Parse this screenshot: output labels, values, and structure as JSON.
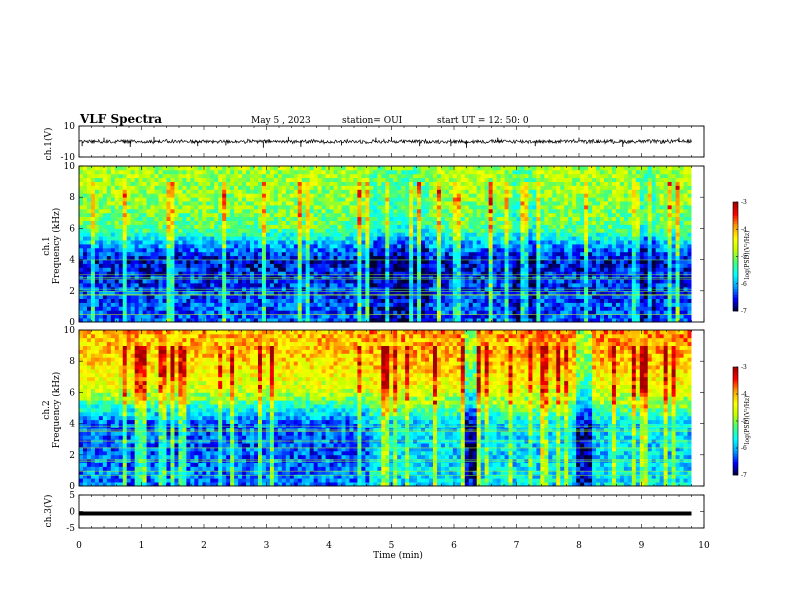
{
  "header": {
    "title": "VLF Spectra",
    "date": "May 5 , 2023",
    "station": "station= OUI",
    "start": "start UT = 12: 50: 0"
  },
  "colors": {
    "scale": [
      "#000033",
      "#0000ff",
      "#00a0ff",
      "#00ffff",
      "#40ff80",
      "#c0ff00",
      "#ffff00",
      "#ffa000",
      "#ff0000",
      "#a00000"
    ],
    "trace": "#000000"
  },
  "chart_data": [
    {
      "type": "line",
      "ylabel": "ch.1(V)",
      "ylim": [
        -10,
        10
      ],
      "ytick_labels": [
        "10",
        "-10"
      ],
      "baseline": 0,
      "noise_amplitude": 1.5,
      "spikes": [
        {
          "t": 0.05,
          "v": -3
        },
        {
          "t": 0.4,
          "v": 2.5
        },
        {
          "t": 0.82,
          "v": -3.5
        },
        {
          "t": 1.2,
          "v": 3
        },
        {
          "t": 1.9,
          "v": -3
        },
        {
          "t": 2.35,
          "v": -2.5
        },
        {
          "t": 2.95,
          "v": -4
        },
        {
          "t": 3.35,
          "v": 3
        },
        {
          "t": 3.55,
          "v": -3.5
        },
        {
          "t": 4.2,
          "v": -2.5
        },
        {
          "t": 4.75,
          "v": 2.5
        },
        {
          "t": 5.0,
          "v": 3
        },
        {
          "t": 5.45,
          "v": -3
        },
        {
          "t": 5.95,
          "v": -3
        },
        {
          "t": 6.2,
          "v": -4
        },
        {
          "t": 6.7,
          "v": 2.5
        },
        {
          "t": 7.3,
          "v": -3
        },
        {
          "t": 8.0,
          "v": 2.5
        },
        {
          "t": 8.7,
          "v": -3.5
        },
        {
          "t": 9.6,
          "v": 2.5
        }
      ]
    },
    {
      "type": "heatmap",
      "ylabel": "ch.1",
      "ylabel2": "Frequency (kHz)",
      "ylim": [
        0,
        10
      ],
      "ytick_labels": [
        "0",
        "2",
        "4",
        "6",
        "8",
        "10"
      ],
      "colorbar": {
        "label": "log(PSD)(V²/Hz)",
        "ticks": [
          "-3",
          "-4",
          "-5",
          "-6",
          "-7"
        ],
        "range": [
          -7,
          -3
        ]
      },
      "x_range_min": [
        0,
        9.8
      ],
      "psd_profile": [
        {
          "f": 0,
          "v": -6.3
        },
        {
          "f": 2,
          "v": -6.4
        },
        {
          "f": 4,
          "v": -6.6
        },
        {
          "f": 5,
          "v": -6.0
        },
        {
          "f": 6,
          "v": -5.2
        },
        {
          "f": 8,
          "v": -4.9
        },
        {
          "f": 10,
          "v": -4.8
        }
      ],
      "quiet_intervals": [
        [
          4.6,
          5.6
        ],
        [
          6.9,
          7.3
        ],
        [
          8.9,
          9.2
        ]
      ]
    },
    {
      "type": "heatmap",
      "ylabel": "ch.2",
      "ylabel2": "Frequency (kHz)",
      "ylim": [
        0,
        10
      ],
      "ytick_labels": [
        "0",
        "2",
        "4",
        "6",
        "8",
        "10"
      ],
      "colorbar": {
        "label": "log(PSD)(V²/Hz)",
        "ticks": [
          "-3",
          "-4",
          "-5",
          "-6",
          "-7"
        ],
        "range": [
          -7,
          -3
        ]
      },
      "x_range_min": [
        0,
        9.8
      ],
      "psd_profile": [
        {
          "f": 0,
          "v": -6.2
        },
        {
          "f": 2,
          "v": -6.3
        },
        {
          "f": 4,
          "v": -6.3
        },
        {
          "f": 5,
          "v": -5.6
        },
        {
          "f": 6,
          "v": -4.7
        },
        {
          "f": 8,
          "v": -4.2
        },
        {
          "f": 10,
          "v": -4.0
        }
      ],
      "raised_interval": [
        4.6,
        9.8
      ],
      "dark_columns": [
        [
          6.15,
          6.35
        ],
        [
          7.95,
          8.15
        ]
      ]
    },
    {
      "type": "line",
      "ylabel": "ch.3(V)",
      "ylim": [
        -5,
        5
      ],
      "ytick_labels": [
        "5",
        "0",
        "-5"
      ],
      "constant_value": 0
    }
  ],
  "xaxis": {
    "label": "Time (min)",
    "ticks": [
      "0",
      "1",
      "2",
      "3",
      "4",
      "5",
      "6",
      "7",
      "8",
      "9",
      "10"
    ],
    "range": [
      0,
      10
    ]
  }
}
